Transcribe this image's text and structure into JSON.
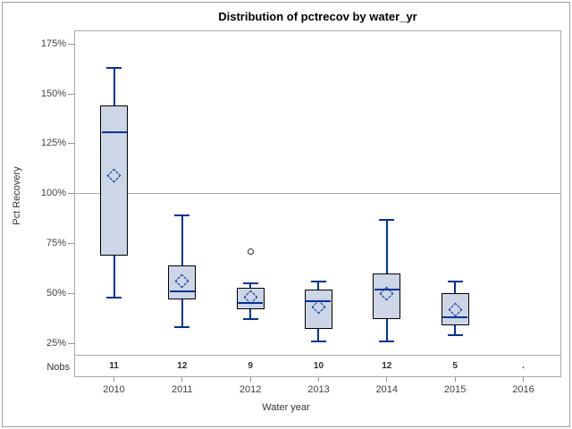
{
  "figure": {
    "nobs_row_label": "Nobs"
  },
  "chart_data": {
    "type": "boxplot",
    "title": "Distribution of pctrecov by water_yr",
    "xlabel": "Water year",
    "ylabel": "Pct Recovery",
    "ylim": [
      19,
      182
    ],
    "y_ticks_pct": [
      175,
      150,
      125,
      100,
      75,
      50,
      25
    ],
    "y_tick_suffix": "%",
    "reference_line_pct": 100,
    "grid": "reference line at 100% only",
    "categories": [
      "2010",
      "2011",
      "2012",
      "2013",
      "2014",
      "2015",
      "2016"
    ],
    "nobs": [
      "11",
      "12",
      "9",
      "10",
      "12",
      "5",
      "."
    ],
    "boxes": [
      {
        "category": "2010",
        "nobs": "11",
        "whisker_low": 48,
        "q1": 69,
        "median": 131,
        "q3": 144,
        "whisker_high": 163,
        "mean": 109,
        "outliers": []
      },
      {
        "category": "2011",
        "nobs": "12",
        "whisker_low": 33,
        "q1": 47,
        "median": 51,
        "q3": 64,
        "whisker_high": 89,
        "mean": 56,
        "outliers": []
      },
      {
        "category": "2012",
        "nobs": "9",
        "whisker_low": 37,
        "q1": 42,
        "median": 45,
        "q3": 53,
        "whisker_high": 55,
        "mean": 48,
        "outliers": [
          71
        ]
      },
      {
        "category": "2013",
        "nobs": "10",
        "whisker_low": 26,
        "q1": 32,
        "median": 46,
        "q3": 52,
        "whisker_high": 56,
        "mean": 43,
        "outliers": []
      },
      {
        "category": "2014",
        "nobs": "12",
        "whisker_low": 26,
        "q1": 37,
        "median": 52,
        "q3": 60,
        "whisker_high": 87,
        "mean": 50,
        "outliers": []
      },
      {
        "category": "2015",
        "nobs": "5",
        "whisker_low": 29,
        "q1": 34,
        "median": 38,
        "q3": 50,
        "whisker_high": 56,
        "mean": 42,
        "outliers": []
      },
      {
        "category": "2016",
        "nobs": ".",
        "empty": true,
        "outliers": []
      }
    ],
    "colors": {
      "box_fill": "#ccd6e6",
      "box_border": "#000000",
      "whisker": "#003399",
      "median": "#003399",
      "mean_marker": "#003399",
      "outlier": "#2b2b2b",
      "reference_line": "#ababab",
      "frame": "#a6abb0"
    }
  }
}
